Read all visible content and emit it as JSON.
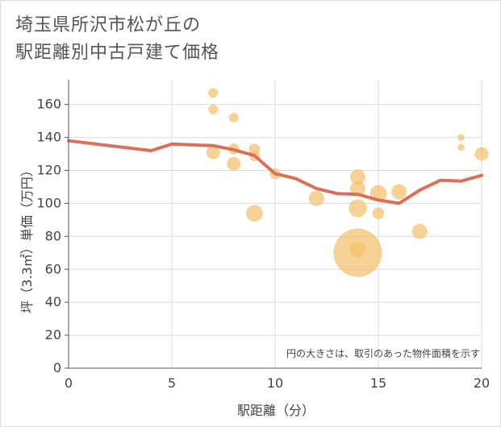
{
  "title_lines": [
    "埼玉県所沢市松が丘の",
    "駅距離別中古戸建て価格"
  ],
  "chart_data": {
    "type": "scatter",
    "xlabel": "駅距離（分）",
    "ylabel": "坪（3.3㎡）単価（万円）",
    "xlim": [
      0,
      20
    ],
    "ylim": [
      0,
      175
    ],
    "x_ticks": [
      0,
      5,
      10,
      15,
      20
    ],
    "y_ticks": [
      0,
      20,
      40,
      60,
      80,
      100,
      120,
      140,
      160
    ],
    "grid": true,
    "note": "円の大きさは、取引のあった物件面積を示す",
    "colors": {
      "bubble": "#f2c26b",
      "line": "#d9705a",
      "grid": "#d8dde6",
      "axis": "#555555"
    },
    "bubbles": [
      {
        "x": 7,
        "y": 167,
        "size": 1
      },
      {
        "x": 7,
        "y": 157,
        "size": 1
      },
      {
        "x": 7,
        "y": 131,
        "size": 2
      },
      {
        "x": 8,
        "y": 152,
        "size": 1
      },
      {
        "x": 8,
        "y": 133,
        "size": 1.3
      },
      {
        "x": 8,
        "y": 124,
        "size": 2
      },
      {
        "x": 9,
        "y": 133,
        "size": 1.3
      },
      {
        "x": 9,
        "y": 129,
        "size": 1.3
      },
      {
        "x": 9,
        "y": 94,
        "size": 3
      },
      {
        "x": 10,
        "y": 118,
        "size": 1.3
      },
      {
        "x": 12,
        "y": 103,
        "size": 2.5
      },
      {
        "x": 14,
        "y": 116,
        "size": 2.5
      },
      {
        "x": 14,
        "y": 109,
        "size": 2.5
      },
      {
        "x": 14,
        "y": 97,
        "size": 3.5
      },
      {
        "x": 14,
        "y": 72,
        "size": 2.5
      },
      {
        "x": 14,
        "y": 70,
        "size": 25
      },
      {
        "x": 15,
        "y": 106,
        "size": 3
      },
      {
        "x": 15,
        "y": 94,
        "size": 1.5
      },
      {
        "x": 16,
        "y": 107,
        "size": 2.5
      },
      {
        "x": 17,
        "y": 83,
        "size": 2.5
      },
      {
        "x": 19,
        "y": 140,
        "size": 0.5
      },
      {
        "x": 19,
        "y": 134,
        "size": 0.5
      },
      {
        "x": 20,
        "y": 130,
        "size": 2
      }
    ],
    "series": [
      {
        "type": "line",
        "points": [
          [
            0,
            138
          ],
          [
            4,
            132
          ],
          [
            5,
            136
          ],
          [
            7,
            135
          ],
          [
            8,
            132.5
          ],
          [
            9,
            129
          ],
          [
            10,
            118
          ],
          [
            11,
            115
          ],
          [
            12,
            109
          ],
          [
            13,
            106
          ],
          [
            14,
            105.5
          ],
          [
            15,
            102
          ],
          [
            16,
            100
          ],
          [
            17,
            108
          ],
          [
            18,
            114
          ],
          [
            19,
            113.5
          ],
          [
            20,
            117
          ]
        ]
      }
    ]
  }
}
